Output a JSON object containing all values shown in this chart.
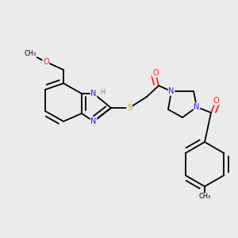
{
  "bg": "#ebebeb",
  "C": "#000000",
  "N": "#2020ff",
  "O": "#ff2020",
  "S": "#ccaa00",
  "H": "#808080",
  "lw": 1.3,
  "fs": 7.0
}
